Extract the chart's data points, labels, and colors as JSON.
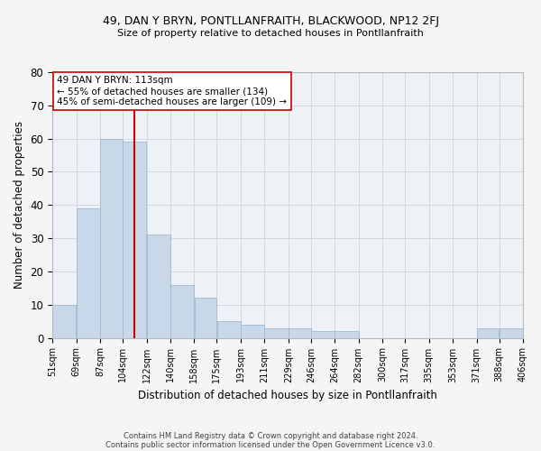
{
  "title1": "49, DAN Y BRYN, PONTLLANFRAITH, BLACKWOOD, NP12 2FJ",
  "title2": "Size of property relative to detached houses in Pontllanfraith",
  "xlabel": "Distribution of detached houses by size in Pontllanfraith",
  "ylabel": "Number of detached properties",
  "footer1": "Contains HM Land Registry data © Crown copyright and database right 2024.",
  "footer2": "Contains public sector information licensed under the Open Government Licence v3.0.",
  "annotation_line1": "49 DAN Y BRYN: 113sqm",
  "annotation_line2": "← 55% of detached houses are smaller (134)",
  "annotation_line3": "45% of semi-detached houses are larger (109) →",
  "bar_left_edges": [
    51,
    69,
    87,
    104,
    122,
    140,
    158,
    175,
    193,
    211,
    229,
    246,
    264,
    282,
    300,
    317,
    335,
    353,
    371,
    388
  ],
  "bar_widths": [
    18,
    18,
    17,
    18,
    18,
    18,
    17,
    18,
    18,
    18,
    17,
    18,
    18,
    18,
    17,
    18,
    18,
    18,
    17,
    18
  ],
  "bar_heights": [
    10,
    39,
    60,
    59,
    31,
    16,
    12,
    5,
    4,
    3,
    3,
    2,
    2,
    0,
    0,
    0,
    0,
    0,
    3,
    3
  ],
  "bar_color": "#c8d8e8",
  "bar_edge_color": "#a0b8d0",
  "vline_x": 113,
  "vline_color": "#cc0000",
  "bg_color": "#eef2f6",
  "fig_color": "#f5f5f5",
  "ylim": [
    0,
    80
  ],
  "yticks": [
    0,
    10,
    20,
    30,
    40,
    50,
    60,
    70,
    80
  ],
  "tick_labels": [
    "51sqm",
    "69sqm",
    "87sqm",
    "104sqm",
    "122sqm",
    "140sqm",
    "158sqm",
    "175sqm",
    "193sqm",
    "211sqm",
    "229sqm",
    "246sqm",
    "264sqm",
    "282sqm",
    "300sqm",
    "317sqm",
    "335sqm",
    "353sqm",
    "371sqm",
    "388sqm",
    "406sqm"
  ],
  "grid_color": "#d0d8e0",
  "annotation_box_color": "#ffffff",
  "annotation_box_edge": "#cc0000"
}
